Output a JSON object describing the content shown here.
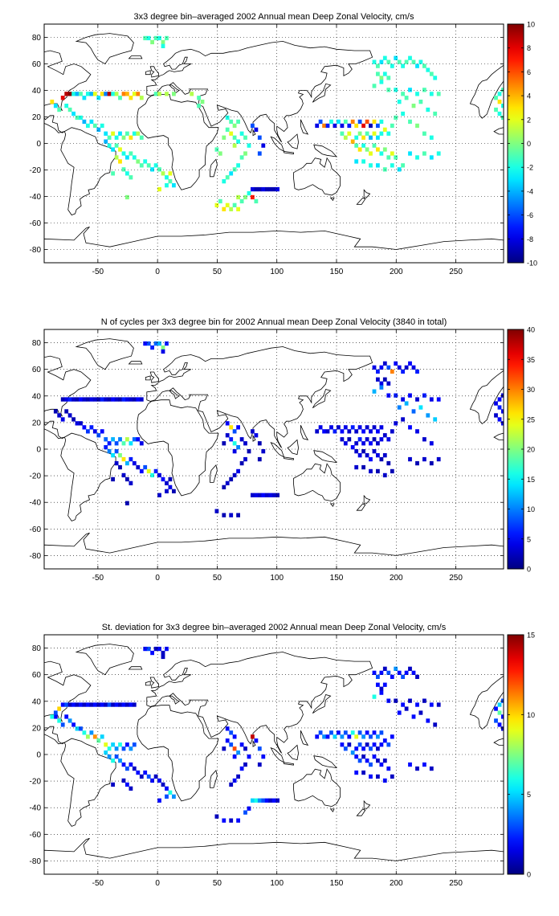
{
  "chart_data": [
    {
      "type": "heatmap",
      "title": "3x3 degree bin–averaged 2002 Annual mean Deep Zonal Velocity, cm/s",
      "xlim": [
        -95,
        290
      ],
      "ylim": [
        -90,
        90
      ],
      "xticks": [
        -50,
        0,
        50,
        100,
        150,
        200,
        250
      ],
      "yticks": [
        -80,
        -60,
        -40,
        -20,
        0,
        20,
        40,
        60,
        80
      ],
      "grid": true,
      "colormap": "jet",
      "colorbar": {
        "min": -10,
        "max": 10,
        "ticks": [
          10,
          8,
          6,
          4,
          2,
          0,
          -2,
          -4,
          -6,
          -8,
          -10
        ]
      }
    },
    {
      "type": "heatmap",
      "title": "N of cycles per 3x3 degree bin for 2002 Annual mean Deep Zonal Velocity (3840 in total)",
      "xlim": [
        -95,
        290
      ],
      "ylim": [
        -90,
        90
      ],
      "xticks": [
        -50,
        0,
        50,
        100,
        150,
        200,
        250
      ],
      "yticks": [
        -80,
        -60,
        -40,
        -20,
        0,
        20,
        40,
        60,
        80
      ],
      "grid": true,
      "colormap": "jet",
      "colorbar": {
        "min": 0,
        "max": 40,
        "ticks": [
          40,
          35,
          30,
          25,
          20,
          15,
          10,
          5,
          0
        ]
      }
    },
    {
      "type": "heatmap",
      "title": "St. deviation for 3x3 degree bin–averaged 2002 Annual mean Deep Zonal Velocity, cm/s",
      "xlim": [
        -95,
        290
      ],
      "ylim": [
        -90,
        90
      ],
      "xticks": [
        -50,
        0,
        50,
        100,
        150,
        200,
        250
      ],
      "yticks": [
        -80,
        -60,
        -40,
        -20,
        0,
        20,
        40,
        60,
        80
      ],
      "grid": true,
      "colormap": "jet",
      "colorbar": {
        "min": 0,
        "max": 15,
        "ticks": [
          15,
          10,
          5,
          0
        ]
      }
    }
  ]
}
